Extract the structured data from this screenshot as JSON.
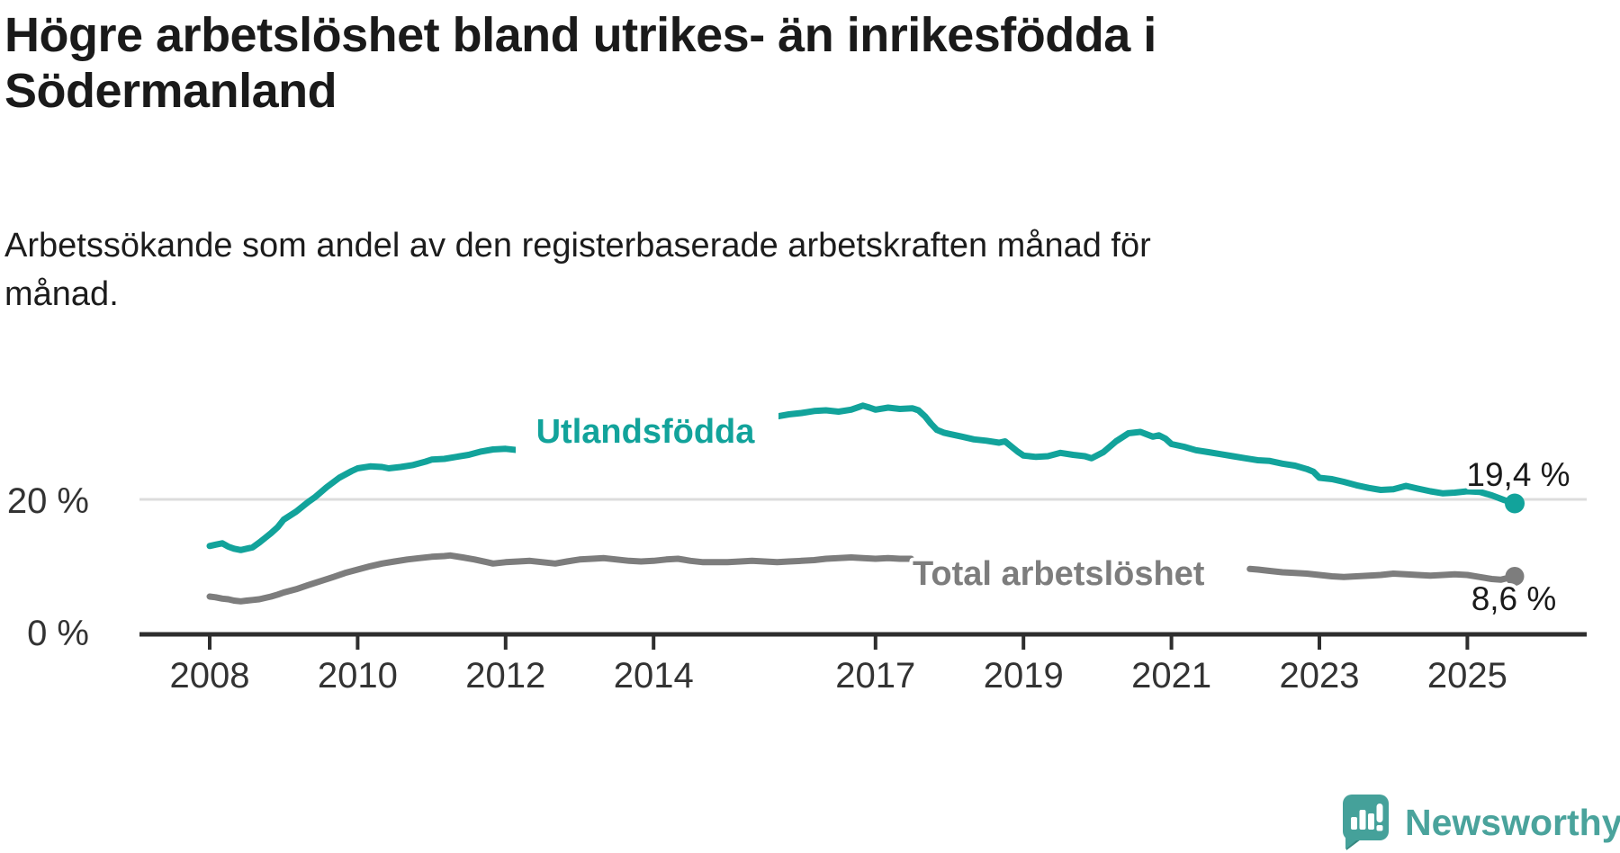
{
  "header": {
    "title_lines": [
      "Högre arbetslöshet bland utrikes- än inrikesfödda i",
      "Södermanland"
    ],
    "subtitle_lines": [
      "Arbetssökande som andel av den registerbaserade arbetskraften månad för",
      "månad."
    ]
  },
  "colors": {
    "accent_teal": "#12a39b",
    "series_gray": "#7d7d7d",
    "gridline": "#dcdcdc",
    "axis": "#2e2e2e",
    "axis_text": "#333333",
    "text_dark": "#1a1a1a",
    "logo_teal": "#4aa39c",
    "logo_bubble": "#45a19a",
    "logo_fold": "#35877f"
  },
  "chart_data": {
    "type": "line",
    "title": "Högre arbetslöshet bland utrikes- än inrikesfödda i Södermanland",
    "subtitle": "Arbetssökande som andel av den registerbaserade arbetskraften månad för månad.",
    "unit": "%",
    "ylim": [
      0,
      35
    ],
    "grid": "horizontal, only at 20 %",
    "legend_position": "inline labels on lines",
    "y_ticks": [
      {
        "value": 0,
        "label": "0 %"
      },
      {
        "value": 20,
        "label": "20 %"
      }
    ],
    "x_ticks": [
      {
        "value": 2008,
        "label": "2008"
      },
      {
        "value": 2010,
        "label": "2010"
      },
      {
        "value": 2012,
        "label": "2012"
      },
      {
        "value": 2014,
        "label": "2014"
      },
      {
        "value": 2017,
        "label": "2017"
      },
      {
        "value": 2019,
        "label": "2019"
      },
      {
        "value": 2021,
        "label": "2021"
      },
      {
        "value": 2023,
        "label": "2023"
      },
      {
        "value": 2025,
        "label": "2025"
      }
    ],
    "x_note": "decimal years, monthly data Jan 2008 – Aug 2025",
    "series": [
      {
        "name": "Utlandsfödda",
        "color": "#12a39b",
        "end_value": 19.4,
        "end_value_label": "19,4 %",
        "segments": [
          [
            [
              2008.0,
              13.1
            ],
            [
              2008.08,
              13.3
            ],
            [
              2008.17,
              13.5
            ],
            [
              2008.25,
              13.0
            ],
            [
              2008.33,
              12.7
            ],
            [
              2008.42,
              12.5
            ],
            [
              2008.5,
              12.7
            ],
            [
              2008.58,
              12.9
            ],
            [
              2008.67,
              13.6
            ],
            [
              2008.75,
              14.3
            ],
            [
              2008.83,
              15.0
            ],
            [
              2008.92,
              15.9
            ],
            [
              2009.0,
              17.0
            ],
            [
              2009.17,
              18.2
            ],
            [
              2009.33,
              19.6
            ],
            [
              2009.42,
              20.3
            ],
            [
              2009.58,
              21.8
            ],
            [
              2009.75,
              23.2
            ],
            [
              2009.92,
              24.2
            ],
            [
              2010.0,
              24.6
            ],
            [
              2010.17,
              24.9
            ],
            [
              2010.33,
              24.8
            ],
            [
              2010.42,
              24.6
            ],
            [
              2010.58,
              24.8
            ],
            [
              2010.75,
              25.1
            ],
            [
              2010.92,
              25.6
            ],
            [
              2011.0,
              25.9
            ],
            [
              2011.17,
              26.0
            ],
            [
              2011.33,
              26.3
            ],
            [
              2011.5,
              26.6
            ],
            [
              2011.67,
              27.1
            ],
            [
              2011.83,
              27.4
            ],
            [
              2012.0,
              27.5
            ],
            [
              2012.17,
              27.3
            ],
            [
              2012.33,
              27.2
            ],
            [
              2012.5,
              27.7
            ],
            [
              2012.67,
              28.3
            ],
            [
              2012.83,
              28.6
            ],
            [
              2013.0,
              29.0
            ],
            [
              2013.08,
              29.2
            ],
            [
              2013.17,
              28.6
            ],
            [
              2013.33,
              28.5
            ],
            [
              2013.5,
              28.8
            ],
            [
              2013.67,
              29.2
            ],
            [
              2013.83,
              29.7
            ],
            [
              2014.0,
              30.1
            ],
            [
              2014.17,
              30.7
            ],
            [
              2014.33,
              30.4
            ],
            [
              2014.5,
              30.3
            ],
            [
              2014.67,
              30.8
            ],
            [
              2014.83,
              31.0
            ],
            [
              2015.0,
              31.2
            ],
            [
              2015.17,
              31.6
            ],
            [
              2015.33,
              31.9
            ],
            [
              2015.5,
              32.1
            ],
            [
              2015.67,
              32.3
            ],
            [
              2015.83,
              32.6
            ],
            [
              2016.0,
              32.8
            ],
            [
              2016.17,
              33.1
            ],
            [
              2016.33,
              33.2
            ],
            [
              2016.5,
              33.0
            ],
            [
              2016.67,
              33.3
            ],
            [
              2016.83,
              33.9
            ],
            [
              2016.92,
              33.6
            ],
            [
              2017.0,
              33.3
            ],
            [
              2017.17,
              33.6
            ],
            [
              2017.33,
              33.4
            ],
            [
              2017.5,
              33.5
            ],
            [
              2017.58,
              33.2
            ],
            [
              2017.67,
              32.3
            ],
            [
              2017.75,
              31.2
            ],
            [
              2017.83,
              30.3
            ],
            [
              2017.92,
              29.9
            ],
            [
              2018.0,
              29.7
            ],
            [
              2018.17,
              29.3
            ],
            [
              2018.33,
              28.9
            ],
            [
              2018.5,
              28.7
            ],
            [
              2018.67,
              28.4
            ],
            [
              2018.75,
              28.6
            ],
            [
              2018.83,
              27.9
            ],
            [
              2018.92,
              27.1
            ],
            [
              2019.0,
              26.5
            ],
            [
              2019.17,
              26.3
            ],
            [
              2019.33,
              26.4
            ],
            [
              2019.5,
              26.9
            ],
            [
              2019.67,
              26.6
            ],
            [
              2019.83,
              26.4
            ],
            [
              2019.92,
              26.1
            ],
            [
              2020.08,
              27.0
            ],
            [
              2020.25,
              28.6
            ],
            [
              2020.42,
              29.8
            ],
            [
              2020.58,
              30.0
            ],
            [
              2020.75,
              29.3
            ],
            [
              2020.83,
              29.5
            ],
            [
              2020.92,
              29.0
            ],
            [
              2021.0,
              28.2
            ],
            [
              2021.17,
              27.8
            ],
            [
              2021.33,
              27.3
            ],
            [
              2021.5,
              27.0
            ],
            [
              2021.67,
              26.7
            ],
            [
              2021.83,
              26.4
            ],
            [
              2022.0,
              26.1
            ],
            [
              2022.17,
              25.8
            ],
            [
              2022.33,
              25.7
            ],
            [
              2022.5,
              25.3
            ],
            [
              2022.67,
              25.0
            ],
            [
              2022.83,
              24.5
            ],
            [
              2022.92,
              24.1
            ],
            [
              2023.0,
              23.2
            ],
            [
              2023.17,
              23.0
            ],
            [
              2023.33,
              22.6
            ],
            [
              2023.5,
              22.1
            ],
            [
              2023.67,
              21.7
            ],
            [
              2023.83,
              21.4
            ],
            [
              2024.0,
              21.5
            ],
            [
              2024.17,
              22.0
            ],
            [
              2024.33,
              21.6
            ],
            [
              2024.5,
              21.2
            ],
            [
              2024.67,
              20.9
            ],
            [
              2024.83,
              21.0
            ],
            [
              2025.0,
              21.2
            ],
            [
              2025.17,
              21.1
            ],
            [
              2025.33,
              20.6
            ],
            [
              2025.5,
              19.9
            ],
            [
              2025.64,
              19.4
            ]
          ]
        ]
      },
      {
        "name": "Total arbetslöshet",
        "color": "#7d7d7d",
        "end_value": 8.6,
        "end_value_label": "8,6 %",
        "segments": [
          [
            [
              2008.0,
              5.6
            ],
            [
              2008.08,
              5.5
            ],
            [
              2008.17,
              5.3
            ],
            [
              2008.25,
              5.2
            ],
            [
              2008.33,
              5.0
            ],
            [
              2008.42,
              4.9
            ],
            [
              2008.5,
              5.0
            ],
            [
              2008.58,
              5.1
            ],
            [
              2008.67,
              5.2
            ],
            [
              2008.75,
              5.4
            ],
            [
              2008.83,
              5.6
            ],
            [
              2008.92,
              5.9
            ],
            [
              2009.0,
              6.2
            ],
            [
              2009.17,
              6.7
            ],
            [
              2009.33,
              7.3
            ],
            [
              2009.5,
              7.9
            ],
            [
              2009.67,
              8.5
            ],
            [
              2009.83,
              9.1
            ],
            [
              2010.0,
              9.6
            ],
            [
              2010.17,
              10.1
            ],
            [
              2010.33,
              10.5
            ],
            [
              2010.5,
              10.8
            ],
            [
              2010.67,
              11.1
            ],
            [
              2010.83,
              11.3
            ],
            [
              2011.0,
              11.5
            ],
            [
              2011.17,
              11.6
            ],
            [
              2011.25,
              11.7
            ],
            [
              2011.42,
              11.4
            ],
            [
              2011.58,
              11.1
            ],
            [
              2011.75,
              10.7
            ],
            [
              2011.83,
              10.5
            ],
            [
              2012.0,
              10.7
            ],
            [
              2012.17,
              10.8
            ],
            [
              2012.33,
              10.9
            ],
            [
              2012.5,
              10.7
            ],
            [
              2012.67,
              10.5
            ],
            [
              2012.83,
              10.8
            ],
            [
              2013.0,
              11.1
            ],
            [
              2013.17,
              11.2
            ],
            [
              2013.33,
              11.3
            ],
            [
              2013.5,
              11.1
            ],
            [
              2013.67,
              10.9
            ],
            [
              2013.83,
              10.8
            ],
            [
              2014.0,
              10.9
            ],
            [
              2014.17,
              11.1
            ],
            [
              2014.33,
              11.2
            ],
            [
              2014.5,
              10.9
            ],
            [
              2014.67,
              10.7
            ],
            [
              2014.83,
              10.7
            ],
            [
              2015.0,
              10.7
            ],
            [
              2015.17,
              10.8
            ],
            [
              2015.33,
              10.9
            ],
            [
              2015.5,
              10.8
            ],
            [
              2015.67,
              10.7
            ],
            [
              2015.83,
              10.8
            ],
            [
              2016.0,
              10.9
            ],
            [
              2016.17,
              11.0
            ],
            [
              2016.33,
              11.2
            ],
            [
              2016.5,
              11.3
            ],
            [
              2016.67,
              11.4
            ],
            [
              2016.83,
              11.3
            ],
            [
              2017.0,
              11.2
            ],
            [
              2017.17,
              11.3
            ],
            [
              2017.33,
              11.2
            ],
            [
              2017.48,
              11.2
            ]
          ],
          [
            [
              2022.06,
              9.7
            ],
            [
              2022.17,
              9.6
            ],
            [
              2022.33,
              9.4
            ],
            [
              2022.5,
              9.2
            ],
            [
              2022.67,
              9.1
            ],
            [
              2022.83,
              9.0
            ],
            [
              2023.0,
              8.8
            ],
            [
              2023.17,
              8.6
            ],
            [
              2023.33,
              8.5
            ],
            [
              2023.5,
              8.6
            ],
            [
              2023.67,
              8.7
            ],
            [
              2023.83,
              8.8
            ],
            [
              2024.0,
              9.0
            ],
            [
              2024.17,
              8.9
            ],
            [
              2024.33,
              8.8
            ],
            [
              2024.5,
              8.7
            ],
            [
              2024.67,
              8.8
            ],
            [
              2024.83,
              8.9
            ],
            [
              2025.0,
              8.8
            ],
            [
              2025.17,
              8.5
            ],
            [
              2025.33,
              8.2
            ],
            [
              2025.45,
              8.1
            ],
            [
              2025.64,
              8.6
            ]
          ]
        ]
      }
    ]
  },
  "logo": {
    "text": "Newsworthy"
  }
}
